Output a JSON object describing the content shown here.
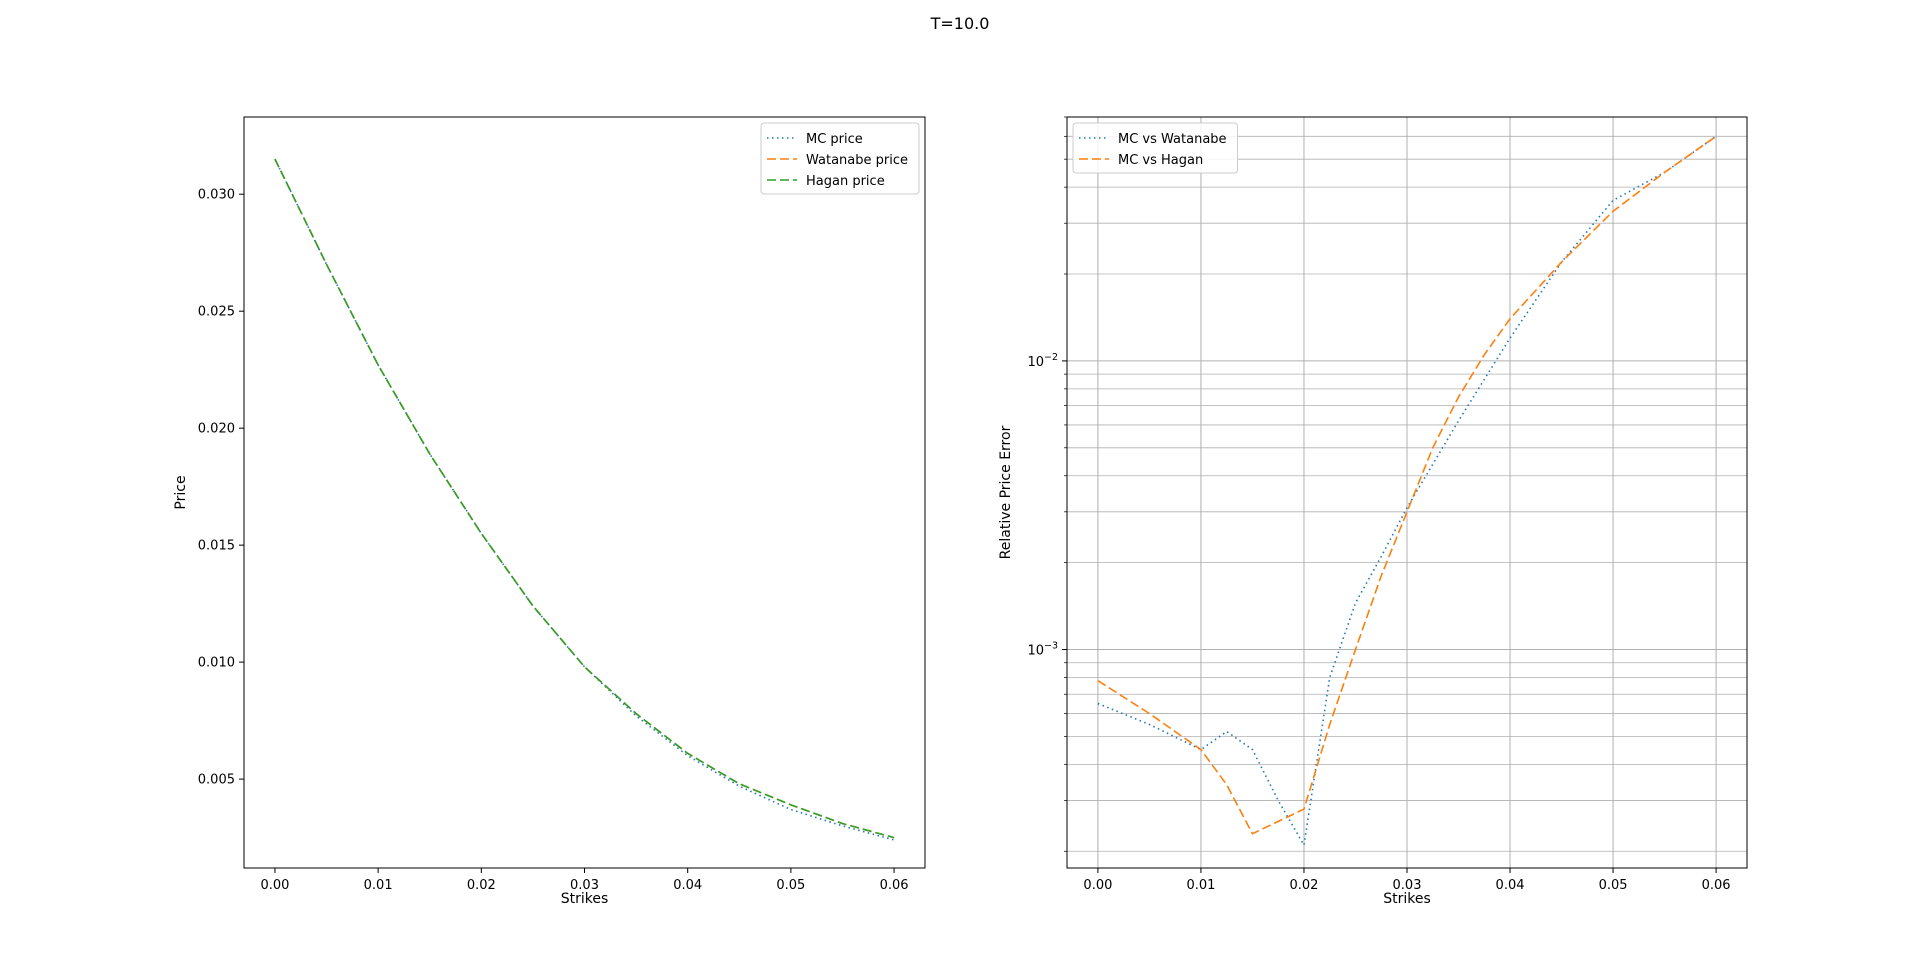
{
  "figure": {
    "suptitle": "T=10.0"
  },
  "chart_data": [
    {
      "type": "line",
      "xlabel": "Strikes",
      "ylabel": "Price",
      "xlim": [
        -0.003,
        0.063
      ],
      "ylim": [
        0.0012,
        0.0333
      ],
      "yscale": "linear",
      "grid": false,
      "legend_position": "top-right",
      "xticks": [
        0.0,
        0.01,
        0.02,
        0.03,
        0.04,
        0.05,
        0.06
      ],
      "xtick_labels": [
        "0.00",
        "0.01",
        "0.02",
        "0.03",
        "0.04",
        "0.05",
        "0.06"
      ],
      "yticks": [
        0.005,
        0.01,
        0.015,
        0.02,
        0.025,
        0.03
      ],
      "ytick_labels": [
        "0.005",
        "0.010",
        "0.015",
        "0.020",
        "0.025",
        "0.030"
      ],
      "x": [
        0.0,
        0.005,
        0.01,
        0.015,
        0.02,
        0.025,
        0.03,
        0.035,
        0.04,
        0.045,
        0.05,
        0.055,
        0.06
      ],
      "series": [
        {
          "name": "MC price",
          "color": "#1f77b4",
          "dash": "dotted",
          "values": [
            0.0315,
            0.027,
            0.0227,
            0.0189,
            0.0155,
            0.0124,
            0.0098,
            0.0077,
            0.006,
            0.0047,
            0.0037,
            0.003,
            0.0024
          ]
        },
        {
          "name": "Watanabe price",
          "color": "#ff7f0e",
          "dash": "dashed",
          "values": [
            0.0315,
            0.027,
            0.0227,
            0.0189,
            0.0155,
            0.0124,
            0.0098,
            0.0078,
            0.0061,
            0.0048,
            0.0039,
            0.0031,
            0.0025
          ]
        },
        {
          "name": "Hagan price",
          "color": "#2ca02c",
          "dash": "dashed",
          "values": [
            0.0315,
            0.027,
            0.0227,
            0.0189,
            0.0155,
            0.0124,
            0.0098,
            0.0078,
            0.0061,
            0.0048,
            0.0039,
            0.0031,
            0.0025
          ]
        }
      ]
    },
    {
      "type": "line",
      "xlabel": "Strikes",
      "ylabel": "Relative Price Error",
      "xlim": [
        -0.003,
        0.063
      ],
      "ylim": [
        0.000175,
        0.07
      ],
      "yscale": "log",
      "grid": true,
      "legend_position": "top-left",
      "xticks": [
        0.0,
        0.01,
        0.02,
        0.03,
        0.04,
        0.05,
        0.06
      ],
      "xtick_labels": [
        "0.00",
        "0.01",
        "0.02",
        "0.03",
        "0.04",
        "0.05",
        "0.06"
      ],
      "yticks_major": [
        0.001,
        0.01
      ],
      "ytick_labels": [
        {
          "base": "10",
          "exp": "−3"
        },
        {
          "base": "10",
          "exp": "−2"
        }
      ],
      "series": [
        {
          "name": "MC vs Watanabe",
          "color": "#1f77b4",
          "dash": "dotted",
          "x": [
            0.0,
            0.005,
            0.01,
            0.0125,
            0.015,
            0.0175,
            0.02,
            0.0225,
            0.025,
            0.0275,
            0.03,
            0.035,
            0.04,
            0.045,
            0.05,
            0.055,
            0.06
          ],
          "values": [
            0.00065,
            0.00055,
            0.00045,
            0.00052,
            0.00045,
            0.0003,
            0.00021,
            0.0008,
            0.00145,
            0.0021,
            0.0031,
            0.0062,
            0.012,
            0.022,
            0.036,
            0.045,
            0.06
          ]
        },
        {
          "name": "MC vs Hagan",
          "color": "#ff7f0e",
          "dash": "dashed",
          "x": [
            0.0,
            0.005,
            0.01,
            0.0125,
            0.015,
            0.02,
            0.0225,
            0.025,
            0.0275,
            0.03,
            0.0325,
            0.035,
            0.0375,
            0.04,
            0.045,
            0.05,
            0.055,
            0.06
          ],
          "values": [
            0.00078,
            0.0006,
            0.00045,
            0.00034,
            0.00023,
            0.00028,
            0.00055,
            0.001,
            0.0018,
            0.003,
            0.005,
            0.0075,
            0.0105,
            0.014,
            0.022,
            0.033,
            0.045,
            0.06
          ]
        }
      ]
    }
  ]
}
